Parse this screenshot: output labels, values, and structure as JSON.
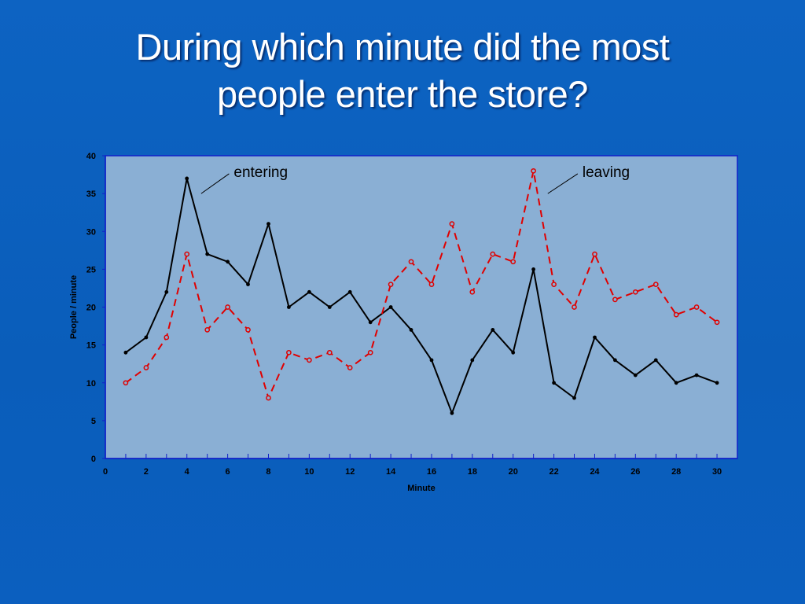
{
  "slide": {
    "title_line1": "During which minute did the most",
    "title_line2": "people enter the store?"
  },
  "colors": {
    "background": "#0b5fbf",
    "plot_area": "#8aafd4",
    "plot_border": "#1020c8",
    "entering": "#000000",
    "leaving": "#e00000"
  },
  "chart_data": {
    "type": "line",
    "title": "",
    "xlabel": "Minute",
    "ylabel": "People / minute",
    "xlim": [
      0,
      31
    ],
    "ylim": [
      0,
      40
    ],
    "x_ticks": [
      0,
      2,
      4,
      6,
      8,
      10,
      12,
      14,
      16,
      18,
      20,
      22,
      24,
      26,
      28,
      30
    ],
    "y_ticks": [
      0,
      5,
      10,
      15,
      20,
      25,
      30,
      35,
      40
    ],
    "grid": false,
    "legend": "none",
    "x": [
      1,
      2,
      3,
      4,
      5,
      6,
      7,
      8,
      9,
      10,
      11,
      12,
      13,
      14,
      15,
      16,
      17,
      18,
      19,
      20,
      21,
      22,
      23,
      24,
      25,
      26,
      27,
      28,
      29,
      30
    ],
    "series": [
      {
        "name": "entering",
        "style": "solid",
        "values": [
          14,
          16,
          22,
          37,
          27,
          26,
          23,
          31,
          20,
          22,
          20,
          22,
          18,
          20,
          17,
          13,
          6,
          13,
          17,
          14,
          25,
          10,
          8,
          16,
          13,
          11,
          13,
          10,
          11,
          10
        ]
      },
      {
        "name": "leaving",
        "style": "dashed",
        "values": [
          10,
          12,
          16,
          27,
          17,
          20,
          17,
          8,
          14,
          13,
          14,
          12,
          14,
          23,
          26,
          23,
          31,
          22,
          27,
          26,
          38,
          23,
          20,
          27,
          21,
          22,
          23,
          19,
          20,
          18
        ]
      }
    ],
    "annotations": [
      {
        "text": "entering",
        "series": "entering",
        "points_to_x": 4.7,
        "points_to_y": 35,
        "label_x": 6.3,
        "label_y": 37.2
      },
      {
        "text": "leaving",
        "series": "leaving",
        "points_to_x": 21.7,
        "points_to_y": 35,
        "label_x": 23.4,
        "label_y": 37.2
      }
    ]
  }
}
